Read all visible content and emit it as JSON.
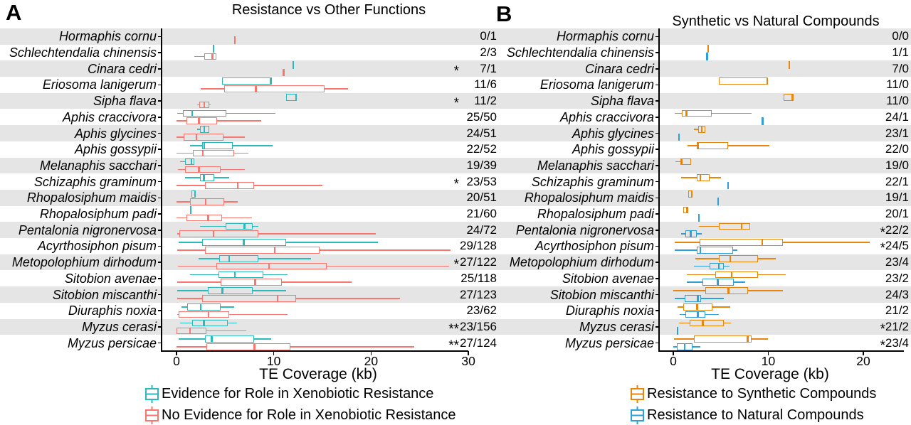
{
  "figure": {
    "background": "#ffffff"
  },
  "chart_data": {
    "type": "boxplot",
    "orientation": "horizontal",
    "stripe_color": "#E5E5E5",
    "x_unit": "kb",
    "panels": [
      {
        "letter": "A",
        "title": "Resistance vs Other Functions",
        "xlabel": "TE Coverage (kb)",
        "x_ticks": [
          0,
          10,
          20,
          30
        ],
        "series": [
          {
            "name": "Evidence for Role in Xenobiotic Resistance",
            "color": "#2CB9BC"
          },
          {
            "name": "No Evidence for Role in Xenobiotic Resistance",
            "color": "#F8766D"
          }
        ],
        "rows": [
          {
            "species": "Hormaphis cornu",
            "count": "0/1",
            "stars": "",
            "s1": null,
            "s2": {
              "v": 6.0
            }
          },
          {
            "species": "Schlechtendalia chinensis",
            "count": "2/3",
            "stars": "",
            "s1": {
              "v": 3.8
            },
            "s2": {
              "box": [
                1.8,
                2.85,
                3.7,
                4.1,
                4.1
              ]
            }
          },
          {
            "species": "Cinara cedri",
            "count": "7/1",
            "stars": "*",
            "s1": {
              "v": 12.0
            },
            "s2": {
              "v": 11.0
            }
          },
          {
            "species": "Eriosoma lanigerum",
            "count": "11/6",
            "stars": "",
            "s1": {
              "box": [
                4.65,
                4.65,
                9.7,
                9.7,
                9.7
              ]
            },
            "s2": {
              "box": [
                2.5,
                4.9,
                8.15,
                15.2,
                17.65
              ]
            }
          },
          {
            "species": "Sipha flava",
            "count": "11/2",
            "stars": "*",
            "s1": {
              "box": [
                11.3,
                11.3,
                12.3,
                12.3,
                12.3
              ]
            },
            "s2": {
              "box": [
                2.15,
                2.35,
                2.85,
                3.35,
                3.5
              ]
            }
          },
          {
            "species": "Aphis craccivora",
            "count": "25/50",
            "stars": "",
            "s1": {
              "box": [
                0.07,
                0.65,
                1.6,
                5.15,
                10.2
              ]
            },
            "s2": {
              "box": [
                0.0,
                1.0,
                2.3,
                4.2,
                8.7
              ]
            }
          },
          {
            "species": "Aphis glycines",
            "count": "24/51",
            "stars": "",
            "s1": {
              "box": [
                2.1,
                2.45,
                2.85,
                3.35,
                3.35
              ]
            },
            "s2": {
              "box": [
                0.0,
                0.7,
                2.05,
                4.8,
                7.0
              ]
            }
          },
          {
            "species": "Aphis gossypii",
            "count": "22/52",
            "stars": "",
            "s1": {
              "box": [
                1.4,
                2.6,
                2.85,
                5.8,
                9.9
              ]
            },
            "s2": {
              "box": [
                0.0,
                1.7,
                2.7,
                5.9,
                7.4
              ]
            }
          },
          {
            "species": "Melanaphis sacchari",
            "count": "19/39",
            "stars": "",
            "s1": {
              "box": [
                0.35,
                0.9,
                1.55,
                1.8,
                1.8
              ]
            },
            "s2": {
              "box": [
                0.15,
                0.9,
                2.3,
                4.5,
                7.0
              ]
            }
          },
          {
            "species": "Schizaphis graminum",
            "count": "23/53",
            "stars": "*",
            "s1": {
              "box": [
                0.85,
                2.4,
                2.8,
                3.85,
                5.45
              ]
            },
            "s2": {
              "box": [
                0.0,
                2.95,
                6.3,
                8.0,
                15.0
              ]
            }
          },
          {
            "species": "Rhopalosiphum maidis",
            "count": "20/51",
            "stars": "",
            "s1": {
              "box": [
                1.55,
                1.55,
                1.9,
                1.9,
                1.9
              ]
            },
            "s2": {
              "box": [
                0.0,
                1.4,
                3.0,
                4.9,
                6.3
              ]
            }
          },
          {
            "species": "Rhopalosiphum padi",
            "count": "21/60",
            "stars": "",
            "s1": {
              "v": 1.45
            },
            "s2": {
              "box": [
                0.0,
                1.0,
                3.25,
                4.7,
                7.75
              ]
            }
          },
          {
            "species": "Pentalonia nigronervosa",
            "count": "24/72",
            "stars": "",
            "s1": {
              "box": [
                2.4,
                5.05,
                7.0,
                7.85,
                8.4
              ]
            },
            "s2": {
              "box": [
                0.05,
                0.3,
                3.8,
                8.4,
                20.5
              ]
            }
          },
          {
            "species": "Acyrthosiphon pisum",
            "count": "29/128",
            "stars": "",
            "s1": {
              "box": [
                0.2,
                2.6,
                6.9,
                11.3,
                20.7
              ]
            },
            "s2": {
              "box": [
                0.05,
                2.9,
                10.1,
                14.7,
                28.2
              ]
            }
          },
          {
            "species": "Metopolophium dirhodum",
            "count": "27/122",
            "stars": "*",
            "s1": {
              "box": [
                2.3,
                4.4,
                5.4,
                8.4,
                13.8
              ]
            },
            "s2": {
              "box": [
                0.15,
                4.1,
                9.5,
                15.4,
                28.0
              ]
            }
          },
          {
            "species": "Sitobion avenae",
            "count": "25/118",
            "stars": "",
            "s1": {
              "box": [
                1.4,
                4.3,
                6.0,
                8.9,
                11.4
              ]
            },
            "s2": {
              "box": [
                0.05,
                4.5,
                8.1,
                10.8,
                18.0
              ]
            }
          },
          {
            "species": "Sitobion miscanthi",
            "count": "27/123",
            "stars": "",
            "s1": {
              "box": [
                0.05,
                3.2,
                4.7,
                7.8,
                11.3
              ]
            },
            "s2": {
              "box": [
                0.1,
                2.6,
                10.4,
                12.3,
                23.0
              ]
            }
          },
          {
            "species": "Diuraphis noxia",
            "count": "23/62",
            "stars": "",
            "s1": {
              "box": [
                0.5,
                1.1,
                2.5,
                4.5,
                5.9
              ]
            },
            "s2": {
              "box": [
                0.05,
                0.2,
                3.3,
                5.4,
                11.4
              ]
            }
          },
          {
            "species": "Myzus cerasi",
            "count": "23/156",
            "stars": "**",
            "s1": {
              "box": [
                0.4,
                1.6,
                2.8,
                5.3,
                6.2
              ]
            },
            "s2": {
              "box": [
                0.0,
                0.0,
                1.4,
                3.1,
                7.2
              ]
            }
          },
          {
            "species": "Myzus persicae",
            "count": "27/124",
            "stars": "**",
            "s1": {
              "box": [
                0.2,
                2.9,
                3.6,
                8.0,
                9.7
              ]
            },
            "s2": {
              "box": [
                0.0,
                3.1,
                8.0,
                11.7,
                24.4
              ]
            }
          }
        ]
      },
      {
        "letter": "B",
        "title": "Synthetic vs Natural Compounds",
        "xlabel": "TE Coverage (kb)",
        "x_ticks": [
          0,
          10,
          20
        ],
        "series": [
          {
            "name": "Resistance to Synthetic Compounds",
            "color": "#E8850D"
          },
          {
            "name": "Resistance to Natural Compounds",
            "color": "#2E9FD9"
          }
        ],
        "rows": [
          {
            "species": "Hormaphis cornu",
            "count": "0/0",
            "stars": "",
            "s1": null,
            "s2": null
          },
          {
            "species": "Schlechtendalia chinensis",
            "count": "1/1",
            "stars": "",
            "s1": {
              "v": 3.65
            },
            "s2": {
              "v": 3.55
            }
          },
          {
            "species": "Cinara cedri",
            "count": "7/0",
            "stars": "",
            "s1": {
              "v": 12.2
            },
            "s2": null
          },
          {
            "species": "Eriosoma lanigerum",
            "count": "11/0",
            "stars": "",
            "s1": {
              "box": [
                4.8,
                4.8,
                9.9,
                9.9,
                9.9
              ]
            },
            "s2": null
          },
          {
            "species": "Sipha flava",
            "count": "11/0",
            "stars": "",
            "s1": {
              "box": [
                11.6,
                11.6,
                12.55,
                12.55,
                12.55
              ]
            },
            "s2": null
          },
          {
            "species": "Aphis craccivora",
            "count": "24/1",
            "stars": "",
            "s1": {
              "box": [
                0.17,
                0.9,
                1.4,
                4.05,
                8.25
              ]
            },
            "s2": {
              "v": 9.4
            }
          },
          {
            "species": "Aphis glycines",
            "count": "23/1",
            "stars": "",
            "s1": {
              "box": [
                2.2,
                2.6,
                3.0,
                3.4,
                3.4
              ]
            },
            "s2": {
              "v": 0.6
            }
          },
          {
            "species": "Aphis gossypii",
            "count": "22/0",
            "stars": "",
            "s1": {
              "box": [
                1.5,
                2.6,
                2.6,
                5.75,
                10.15
              ]
            },
            "s2": null
          },
          {
            "species": "Melanaphis sacchari",
            "count": "19/0",
            "stars": "",
            "s1": {
              "box": [
                0.25,
                0.85,
                0.85,
                1.85,
                1.85
              ]
            },
            "s2": null
          },
          {
            "species": "Schizaphis graminum",
            "count": "22/1",
            "stars": "",
            "s1": {
              "box": [
                0.8,
                2.5,
                2.85,
                3.8,
                5.0
              ]
            },
            "s2": {
              "v": 5.75
            }
          },
          {
            "species": "Rhopalosiphum maidis",
            "count": "19/1",
            "stars": "",
            "s1": {
              "box": [
                1.6,
                1.6,
                1.95,
                1.95,
                1.95
              ]
            },
            "s2": {
              "v": 4.7
            }
          },
          {
            "species": "Rhopalosiphum padi",
            "count": "20/1",
            "stars": "",
            "s1": {
              "box": [
                1.05,
                1.05,
                1.45,
                1.45,
                1.45
              ]
            },
            "s2": {
              "v": 2.7
            }
          },
          {
            "species": "Pentalonia nigronervosa",
            "count": "22/2",
            "stars": "*",
            "s1": {
              "box": [
                2.7,
                4.8,
                7.2,
                8.1,
                8.1
              ]
            },
            "s2": {
              "box": [
                0.85,
                1.3,
                1.85,
                2.5,
                3.0
              ]
            }
          },
          {
            "species": "Acyrthosiphon pisum",
            "count": "24/5",
            "stars": "*",
            "s1": {
              "box": [
                0.17,
                2.75,
                9.35,
                11.55,
                20.7
              ]
            },
            "s2": {
              "box": [
                0.17,
                2.5,
                2.85,
                6.3,
                6.75
              ]
            }
          },
          {
            "species": "Metopolophium dirhodum",
            "count": "23/4",
            "stars": "",
            "s1": {
              "box": [
                2.3,
                4.8,
                6.0,
                8.9,
                10.8
              ]
            },
            "s2": {
              "box": [
                2.2,
                3.8,
                4.8,
                5.35,
                5.9
              ]
            }
          },
          {
            "species": "Sitobion avenae",
            "count": "23/2",
            "stars": "",
            "s1": {
              "box": [
                1.4,
                4.4,
                6.15,
                8.9,
                11.8
              ]
            },
            "s2": {
              "box": [
                1.4,
                3.1,
                4.7,
                6.4,
                7.6
              ]
            }
          },
          {
            "species": "Sitobion miscanthi",
            "count": "24/3",
            "stars": "",
            "s1": {
              "box": [
                0.0,
                3.4,
                5.8,
                7.9,
                11.5
              ]
            },
            "s2": {
              "box": [
                0.15,
                1.2,
                2.6,
                2.9,
                5.3
              ]
            }
          },
          {
            "species": "Diuraphis noxia",
            "count": "21/2",
            "stars": "",
            "s1": {
              "box": [
                0.45,
                1.05,
                2.5,
                4.1,
                6.0
              ]
            },
            "s2": {
              "box": [
                0.67,
                1.3,
                2.6,
                3.4,
                4.8
              ]
            }
          },
          {
            "species": "Myzus cerasi",
            "count": "21/2",
            "stars": "*",
            "s1": {
              "box": [
                0.6,
                1.75,
                3.1,
                5.35,
                6.1
              ]
            },
            "s2": {
              "v": 0.43
            }
          },
          {
            "species": "Myzus persicae",
            "count": "23/4",
            "stars": "*",
            "s1": {
              "box": [
                0.1,
                2.2,
                7.85,
                8.25,
                10.0
              ]
            },
            "s2": {
              "box": [
                0.0,
                0.35,
                1.2,
                2.0,
                2.85
              ]
            }
          }
        ]
      }
    ]
  }
}
